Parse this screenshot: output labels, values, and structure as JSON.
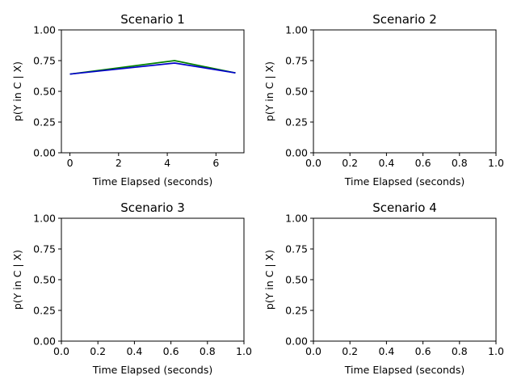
{
  "chart_data": [
    {
      "type": "line",
      "title": "Scenario 1",
      "xlabel": "Time Elapsed (seconds)",
      "ylabel": "p(Y in C | X)",
      "xlim": [
        -0.35,
        7.15
      ],
      "ylim": [
        0,
        1
      ],
      "xticks": [
        "0",
        "2",
        "4",
        "6"
      ],
      "yticks": [
        "0.00",
        "0.25",
        "0.50",
        "0.75",
        "1.00"
      ],
      "series": [
        {
          "x": [
            0,
            4.3,
            6.8
          ],
          "y": [
            0.64,
            0.75,
            0.65
          ],
          "color": "#008000"
        },
        {
          "x": [
            0,
            4.3,
            6.8
          ],
          "y": [
            0.64,
            0.73,
            0.65
          ],
          "color": "#0000cc"
        }
      ]
    },
    {
      "type": "line",
      "title": "Scenario 2",
      "xlabel": "Time Elapsed (seconds)",
      "ylabel": "p(Y in C | X)",
      "xlim": [
        0,
        1
      ],
      "ylim": [
        0,
        1
      ],
      "xticks": [
        "0.0",
        "0.2",
        "0.4",
        "0.6",
        "0.8",
        "1.0"
      ],
      "yticks": [
        "0.00",
        "0.25",
        "0.50",
        "0.75",
        "1.00"
      ],
      "series": []
    },
    {
      "type": "line",
      "title": "Scenario 3",
      "xlabel": "Time Elapsed (seconds)",
      "ylabel": "p(Y in C | X)",
      "xlim": [
        0,
        1
      ],
      "ylim": [
        0,
        1
      ],
      "xticks": [
        "0.0",
        "0.2",
        "0.4",
        "0.6",
        "0.8",
        "1.0"
      ],
      "yticks": [
        "0.00",
        "0.25",
        "0.50",
        "0.75",
        "1.00"
      ],
      "series": []
    },
    {
      "type": "line",
      "title": "Scenario 4",
      "xlabel": "Time Elapsed (seconds)",
      "ylabel": "p(Y in C | X)",
      "xlim": [
        0,
        1
      ],
      "ylim": [
        0,
        1
      ],
      "xticks": [
        "0.0",
        "0.2",
        "0.4",
        "0.6",
        "0.8",
        "1.0"
      ],
      "yticks": [
        "0.00",
        "0.25",
        "0.50",
        "0.75",
        "1.00"
      ],
      "series": []
    }
  ]
}
